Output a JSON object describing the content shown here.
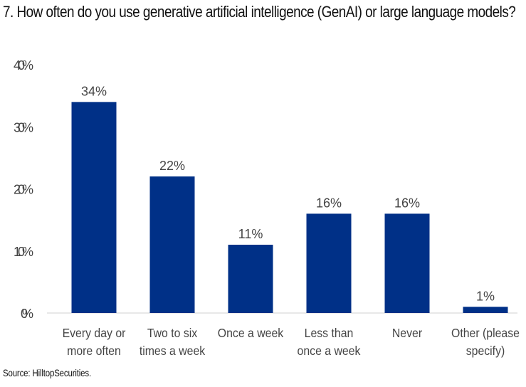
{
  "chart_data": {
    "type": "bar",
    "title": "7. How often do you use generative artificial intelligence (GenAI) or large language models?",
    "xlabel": "",
    "ylabel": "",
    "ylim": [
      0,
      40
    ],
    "yticks": [
      "0%",
      "10%",
      "20%",
      "30%",
      "40%"
    ],
    "ytick_values": [
      0,
      10,
      20,
      30,
      40
    ],
    "categories": [
      [
        "Every day or",
        "more often"
      ],
      [
        "Two to six",
        "times a week"
      ],
      [
        "Once a week"
      ],
      [
        "Less than",
        "once a week"
      ],
      [
        "Never"
      ],
      [
        "Other (please",
        "specify)"
      ]
    ],
    "values": [
      34,
      22,
      11,
      16,
      16,
      1
    ],
    "data_labels": [
      "34%",
      "22%",
      "11%",
      "16%",
      "16%",
      "1%"
    ],
    "grid": false,
    "legend": "none",
    "bar_color": "#003087"
  },
  "source": "Source: HilltopSecurities."
}
